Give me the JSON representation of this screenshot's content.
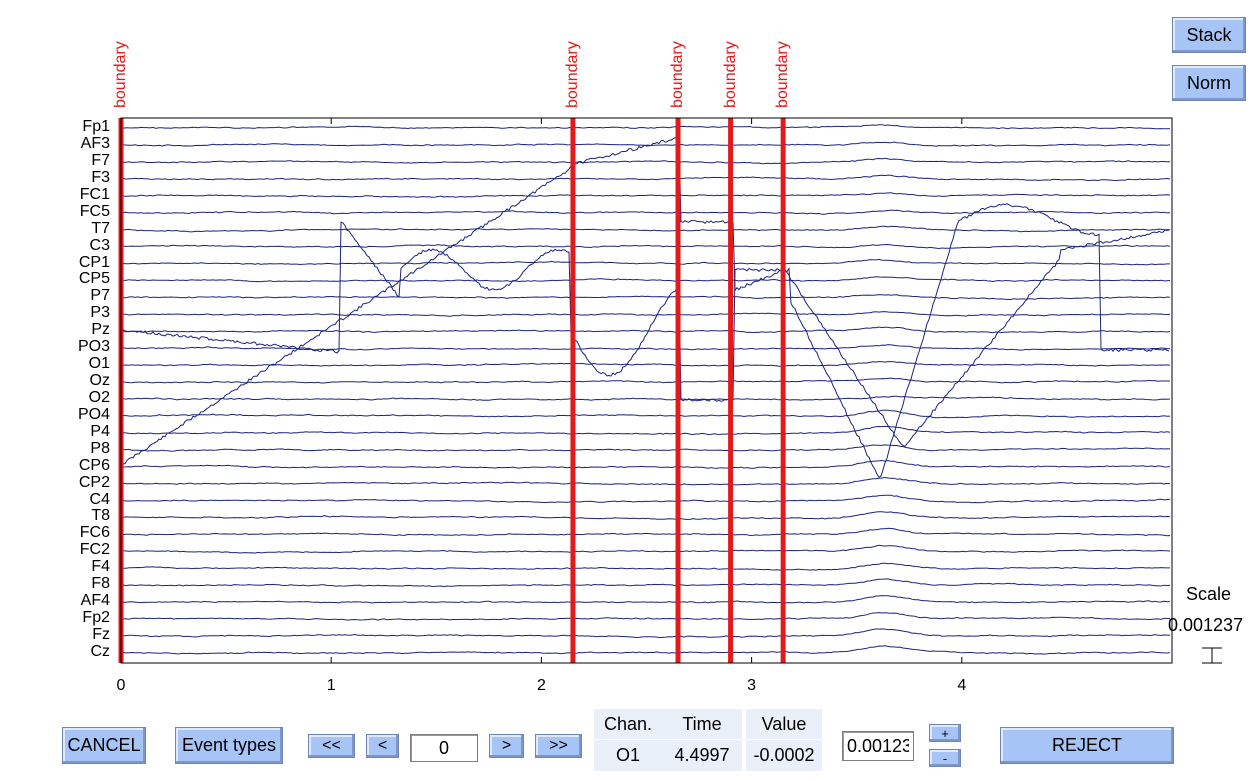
{
  "toolbar_right": {
    "stack_label": "Stack",
    "norm_label": "Norm"
  },
  "channels": [
    "Fp1",
    "AF3",
    "F7",
    "F3",
    "FC1",
    "FC5",
    "T7",
    "C3",
    "CP1",
    "CP5",
    "P7",
    "P3",
    "Pz",
    "PO3",
    "O1",
    "Oz",
    "O2",
    "PO4",
    "P4",
    "P8",
    "CP6",
    "CP2",
    "C4",
    "T8",
    "FC6",
    "FC2",
    "F4",
    "F8",
    "AF4",
    "Fp2",
    "Fz",
    "Cz"
  ],
  "x_axis": {
    "ticks": [
      0,
      1,
      2,
      3,
      4
    ],
    "range": [
      0,
      5
    ]
  },
  "events": [
    {
      "label": "boundary",
      "time": 0.0
    },
    {
      "label": "boundary",
      "time": 2.15
    },
    {
      "label": "boundary",
      "time": 2.65
    },
    {
      "label": "boundary",
      "time": 2.9
    },
    {
      "label": "boundary",
      "time": 3.15
    }
  ],
  "colors": {
    "trace": "#1a237e",
    "event": "#e31a1c",
    "button": "#a6c4f5"
  },
  "scale": {
    "label": "Scale",
    "value": "0.001237"
  },
  "bottom": {
    "cancel_label": "CANCEL",
    "event_types_label": "Event types",
    "prev_page_label": "<<",
    "prev_label": "<",
    "position_value": "0",
    "next_label": ">",
    "next_page_label": ">>",
    "chan_header": "Chan.",
    "time_header": "Time",
    "value_header": "Value",
    "chan_value": "O1",
    "time_value": "4.4997",
    "value_value": "-0.0002",
    "scale_input_value": "0.00123",
    "plus_label": "+",
    "minus_label": "-",
    "reject_label": "REJECT"
  }
}
